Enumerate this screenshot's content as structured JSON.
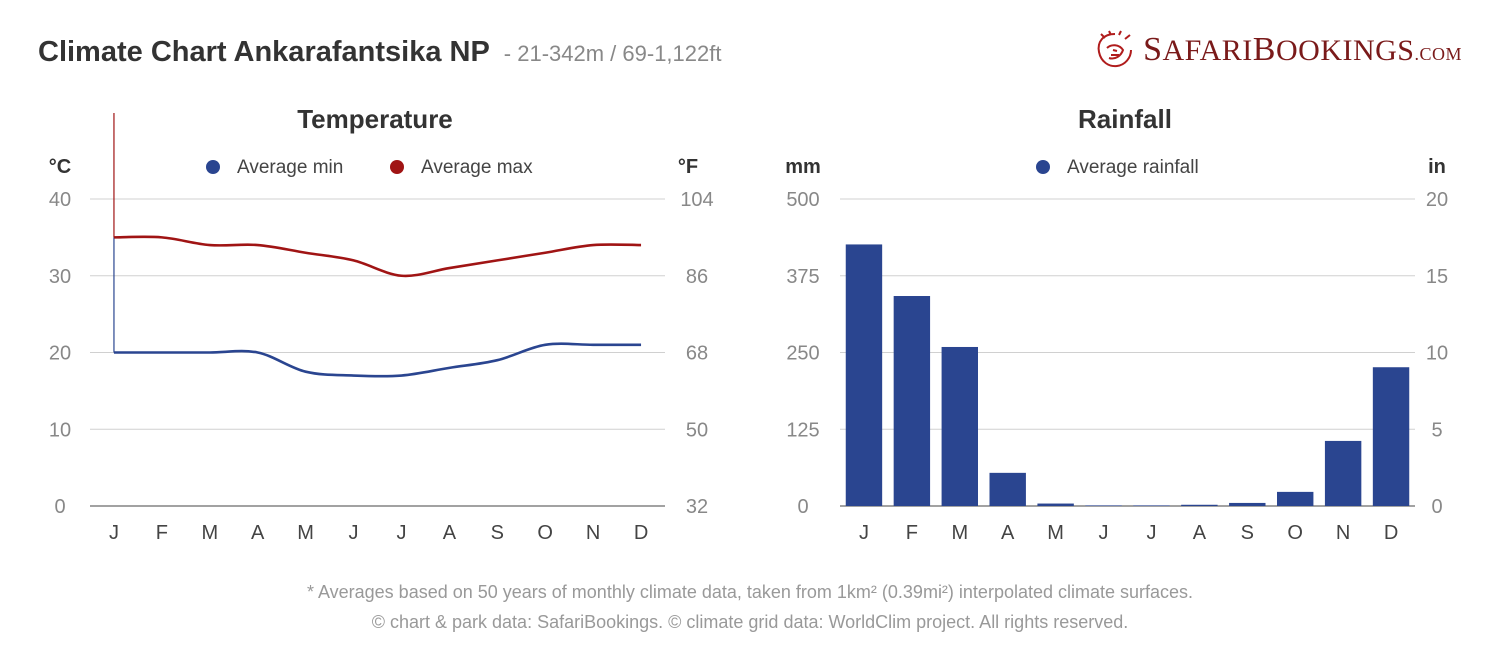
{
  "header": {
    "title": "Climate Chart Ankarafantsika NP",
    "subtitle": "- 21-342m / 69-1,122ft"
  },
  "logo": {
    "icon": "lion-icon",
    "text_s": "S",
    "text_afari": "AFARI",
    "text_b": "B",
    "text_ookings": "OOKINGS",
    "text_com": ".COM",
    "color": "#7a1a1a"
  },
  "footer": {
    "line1": "* Averages based on 50 years of monthly climate data, taken from 1km² (0.39mi²) interpolated climate surfaces.",
    "line2": "© chart & park data: SafariBookings. © climate grid data: WorldClim project. All rights reserved."
  },
  "chart_data": [
    {
      "type": "line",
      "title": "Temperature",
      "ylabel_left": "°C",
      "ylabel_right": "°F",
      "categories": [
        "J",
        "F",
        "M",
        "A",
        "M",
        "J",
        "J",
        "A",
        "S",
        "O",
        "N",
        "D"
      ],
      "ylim": [
        0,
        40
      ],
      "yticks_left": [
        "0",
        "10",
        "20",
        "30",
        "40"
      ],
      "yticks_right": [
        "32",
        "50",
        "68",
        "86",
        "104"
      ],
      "series": [
        {
          "name": "Average min",
          "color": "#2a4590",
          "values": [
            20,
            20,
            20,
            20,
            17.5,
            17,
            17,
            18,
            19,
            21,
            21,
            21
          ]
        },
        {
          "name": "Average max",
          "color": "#a01414",
          "values": [
            35,
            35,
            34,
            34,
            33,
            32,
            30,
            31,
            32,
            33,
            34,
            34
          ]
        }
      ],
      "grid": true,
      "legend": "top-center"
    },
    {
      "type": "bar",
      "title": "Rainfall",
      "ylabel_left": "mm",
      "ylabel_right": "in",
      "categories": [
        "J",
        "F",
        "M",
        "A",
        "M",
        "J",
        "J",
        "A",
        "S",
        "O",
        "N",
        "D"
      ],
      "ylim": [
        0,
        500
      ],
      "yticks_left": [
        "0",
        "125",
        "250",
        "375",
        "500"
      ],
      "yticks_right": [
        "0",
        "5",
        "10",
        "15",
        "20"
      ],
      "series": [
        {
          "name": "Average rainfall",
          "color": "#2a4590",
          "values": [
            426,
            342,
            259,
            54,
            4,
            1,
            1,
            2,
            5,
            23,
            106,
            226
          ]
        }
      ],
      "grid": true,
      "legend": "top-center"
    }
  ]
}
